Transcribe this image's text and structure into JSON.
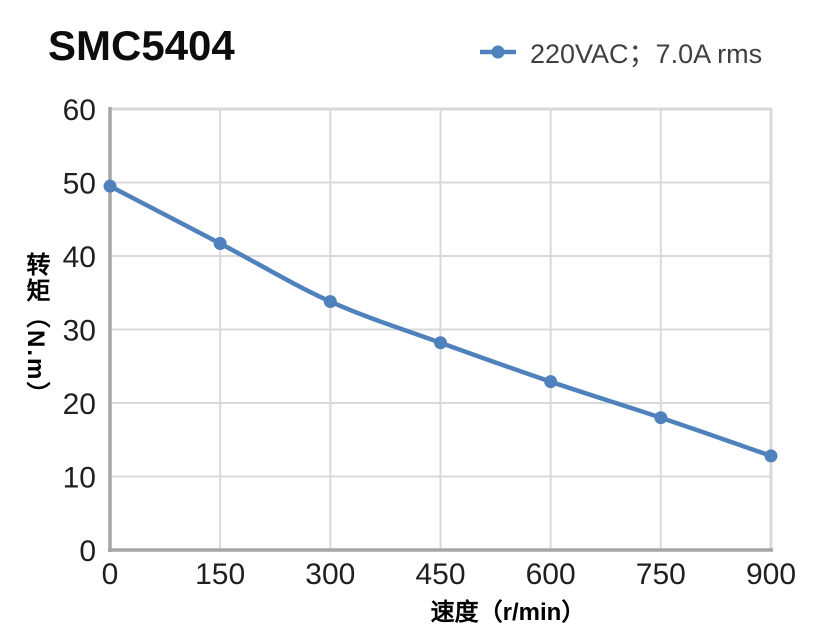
{
  "header": {
    "title": "SMC5404"
  },
  "legend": {
    "label": "220VAC；7.0A rms",
    "marker_color": "#4f81bd"
  },
  "axes": {
    "x_title": "速度（r/min）",
    "y_title": "转矩（N.m）"
  },
  "chart_data": {
    "type": "line",
    "title": "SMC5404",
    "xlabel": "速度（r/min）",
    "ylabel": "转矩（N.m）",
    "x": [
      0,
      150,
      300,
      450,
      600,
      750,
      900
    ],
    "series": [
      {
        "name": "220VAC；7.0A rms",
        "values": [
          49.5,
          41.7,
          33.8,
          28.2,
          22.9,
          18.0,
          12.8
        ]
      }
    ],
    "xlim": [
      0,
      900
    ],
    "ylim": [
      0,
      60
    ],
    "xticks": [
      0,
      150,
      300,
      450,
      600,
      750,
      900
    ],
    "yticks": [
      0,
      10,
      20,
      30,
      40,
      50,
      60
    ],
    "grid": true,
    "legend_position": "top-right",
    "colors": {
      "series": "#4f81bd",
      "grid": "#d9d9d9",
      "axis": "#a6a6a6",
      "tick_text": "#1f1f1f"
    }
  }
}
